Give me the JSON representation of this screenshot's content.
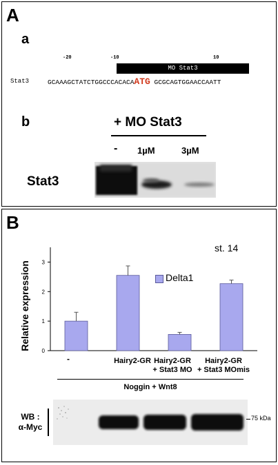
{
  "panel_a": {
    "letter": "A",
    "sub_a": "a",
    "sub_b": "b",
    "position_ticks": [
      "-20",
      "-10",
      "10"
    ],
    "mo_bar_label": "MO Stat3",
    "seq_label": "Stat3",
    "seq_prefix": "GCAAAGCTATCTGGCCCACACA",
    "seq_start_codon": "ATG",
    "seq_suffix": " GCGCAGTGGAACCAATT",
    "treatment_header": "+ MO Stat3",
    "lanes": [
      "-",
      "1µM",
      "3µM"
    ],
    "blot_label": "Stat3"
  },
  "panel_b": {
    "letter": "B",
    "stage_label": "st. 14",
    "legend_label": "Delta1",
    "ylabel": "Relative expression",
    "xlabels": [
      [
        "-"
      ],
      [
        "Hairy2-GR"
      ],
      [
        "Hairy2-GR",
        "+ Stat3 MO"
      ],
      [
        "Hairy2-GR",
        "+ Stat3 MOmis"
      ]
    ],
    "condition_label": "Noggin + Wnt8",
    "wb_label_line1": "WB :",
    "wb_label_line2": "α-Myc",
    "kda_label": "75 kDa"
  },
  "chart_data": {
    "type": "bar",
    "categories": [
      "-",
      "Hairy2-GR",
      "Hairy2-GR + Stat3 MO",
      "Hairy2-GR + Stat3 MOmis"
    ],
    "series": [
      {
        "name": "Delta1",
        "values": [
          1.0,
          2.55,
          0.55,
          2.27
        ],
        "errors": [
          0.3,
          0.32,
          0.07,
          0.12
        ]
      }
    ],
    "yticks": [
      0,
      1,
      2,
      3
    ],
    "ylim": [
      0,
      3.5
    ],
    "ylabel": "Relative expression",
    "legend_position": "top-right",
    "grid": false,
    "colors": {
      "bar_fill": "#a8a8ee",
      "bar_stroke": "#5a5a9a"
    }
  }
}
